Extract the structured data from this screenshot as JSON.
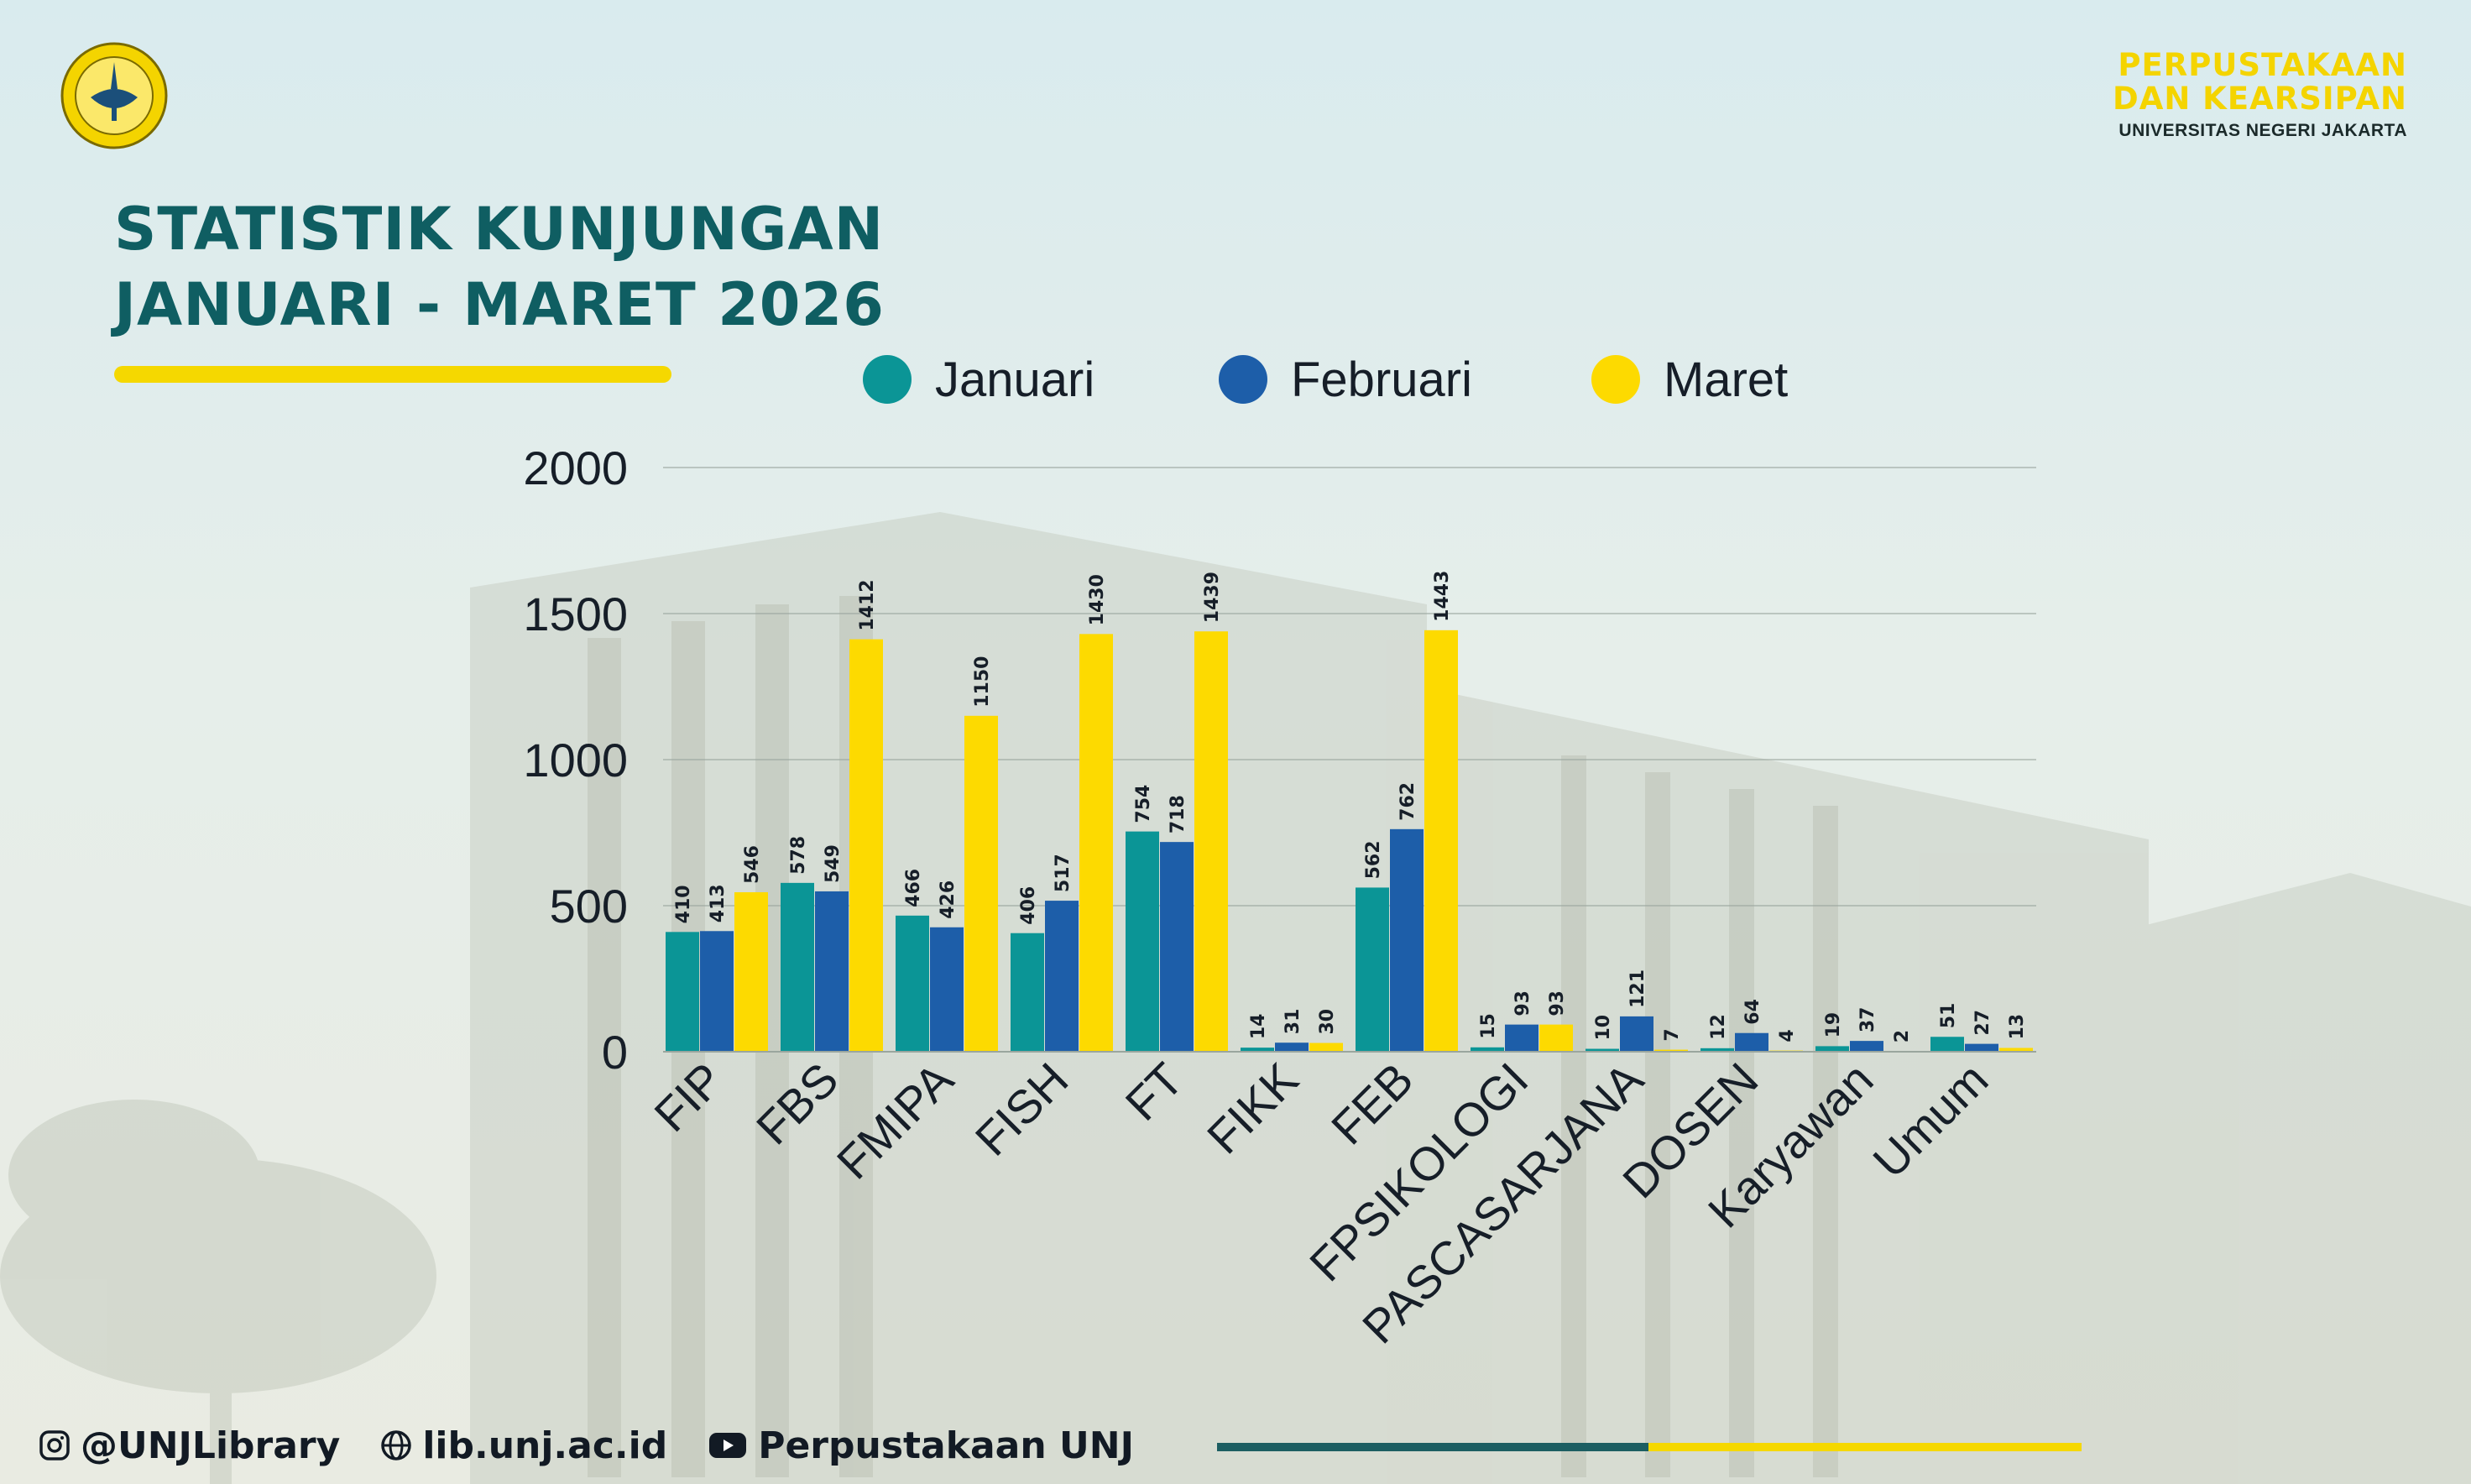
{
  "colors": {
    "januari": "#0b9596",
    "februari": "#1d5ea9",
    "maret": "#fdda00",
    "title": "#0f5e62",
    "accent": "#f5d800"
  },
  "header": {
    "logo_icon": "unj-emblem-icon",
    "org_line1": "PERPUSTAKAAN",
    "org_line2": "DAN KEARSIPAN",
    "org_line3": "UNIVERSITAS NEGERI JAKARTA"
  },
  "title": {
    "line1": "STATISTIK KUNJUNGAN",
    "line2": "JANUARI - MARET 2026"
  },
  "footer": {
    "instagram_icon": "instagram-icon",
    "instagram": "@UNJLibrary",
    "web_icon": "globe-icon",
    "website": "lib.unj.ac.id",
    "youtube_icon": "youtube-icon",
    "youtube": "Perpustakaan UNJ"
  },
  "chart_data": {
    "type": "bar",
    "categories": [
      "FIP",
      "FBS",
      "FMIPA",
      "FISH",
      "FT",
      "FIKK",
      "FEB",
      "FPSIKOLOGI",
      "PASCASARJANA",
      "DOSEN",
      "Karyawan",
      "Umum"
    ],
    "series": [
      {
        "name": "Januari",
        "values": [
          410,
          578,
          466,
          406,
          754,
          14,
          562,
          15,
          10,
          12,
          19,
          51
        ]
      },
      {
        "name": "Februari",
        "values": [
          413,
          549,
          426,
          517,
          718,
          31,
          762,
          93,
          121,
          64,
          37,
          27
        ]
      },
      {
        "name": "Maret",
        "values": [
          546,
          1412,
          1150,
          1430,
          1439,
          30,
          1443,
          93,
          7,
          4,
          2,
          13
        ]
      }
    ],
    "yticks": [
      "0",
      "500",
      "1000",
      "1500",
      "2000"
    ],
    "ylim": [
      0,
      2000
    ],
    "grid": true,
    "legend": "top",
    "data_labels": true
  }
}
